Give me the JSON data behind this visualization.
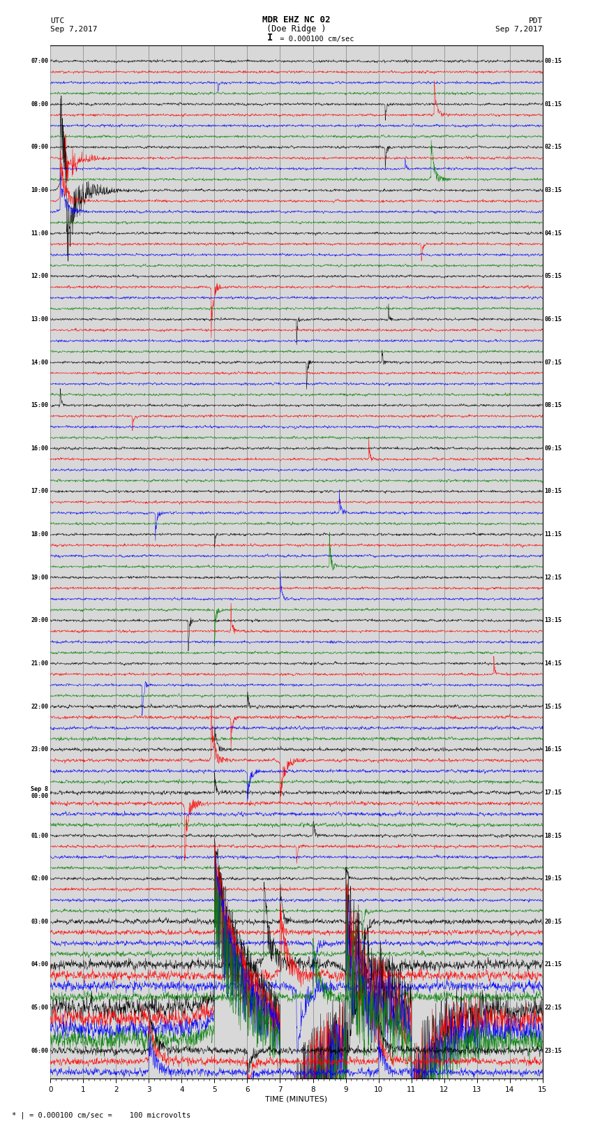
{
  "title_line1": "MDR EHZ NC 02",
  "title_line2": "(Doe Ridge )",
  "scale_label": "I = 0.000100 cm/sec",
  "xlabel": "TIME (MINUTES)",
  "footer_label": "* | = 0.000100 cm/sec =    100 microvolts",
  "left_times": [
    "07:00",
    "",
    "",
    "",
    "08:00",
    "",
    "",
    "",
    "09:00",
    "",
    "",
    "",
    "10:00",
    "",
    "",
    "",
    "11:00",
    "",
    "",
    "",
    "12:00",
    "",
    "",
    "",
    "13:00",
    "",
    "",
    "",
    "14:00",
    "",
    "",
    "",
    "15:00",
    "",
    "",
    "",
    "16:00",
    "",
    "",
    "",
    "17:00",
    "",
    "",
    "",
    "18:00",
    "",
    "",
    "",
    "19:00",
    "",
    "",
    "",
    "20:00",
    "",
    "",
    "",
    "21:00",
    "",
    "",
    "",
    "22:00",
    "",
    "",
    "",
    "23:00",
    "",
    "",
    "",
    "Sep 8\n00:00",
    "",
    "",
    "",
    "01:00",
    "",
    "",
    "",
    "02:00",
    "",
    "",
    "",
    "03:00",
    "",
    "",
    "",
    "04:00",
    "",
    "",
    "",
    "05:00",
    "",
    "",
    "",
    "06:00",
    "",
    ""
  ],
  "right_times": [
    "00:15",
    "",
    "",
    "",
    "01:15",
    "",
    "",
    "",
    "02:15",
    "",
    "",
    "",
    "03:15",
    "",
    "",
    "",
    "04:15",
    "",
    "",
    "",
    "05:15",
    "",
    "",
    "",
    "06:15",
    "",
    "",
    "",
    "07:15",
    "",
    "",
    "",
    "08:15",
    "",
    "",
    "",
    "09:15",
    "",
    "",
    "",
    "10:15",
    "",
    "",
    "",
    "11:15",
    "",
    "",
    "",
    "12:15",
    "",
    "",
    "",
    "13:15",
    "",
    "",
    "",
    "14:15",
    "",
    "",
    "",
    "15:15",
    "",
    "",
    "",
    "16:15",
    "",
    "",
    "",
    "17:15",
    "",
    "",
    "",
    "18:15",
    "",
    "",
    "",
    "19:15",
    "",
    "",
    "",
    "20:15",
    "",
    "",
    "",
    "21:15",
    "",
    "",
    "",
    "22:15",
    "",
    "",
    "",
    "23:15",
    "",
    ""
  ],
  "colors": [
    "black",
    "red",
    "blue",
    "green"
  ],
  "n_rows": 95,
  "n_pts": 1800,
  "minutes": 15,
  "background_color": "white",
  "plot_bg": "#d8d8d8",
  "grid_color": "#777777",
  "noise_seed": 12345
}
